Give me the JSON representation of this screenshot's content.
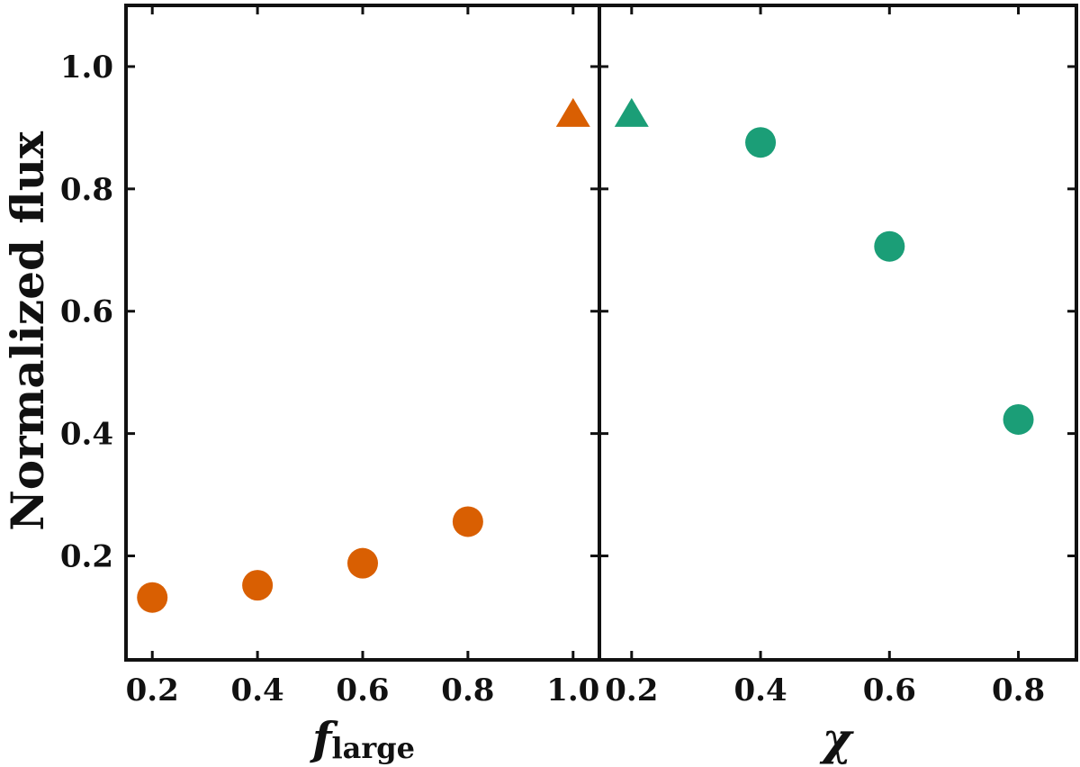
{
  "chart_data": [
    {
      "type": "scatter",
      "panel": "left",
      "ylabel": "Normalized flux",
      "xlabel": "f",
      "xlabel_subscript": "large",
      "xlim": [
        0.15,
        1.05
      ],
      "ylim": [
        0.03,
        1.1
      ],
      "xticks": [
        0.2,
        0.4,
        0.6,
        0.8,
        1.0
      ],
      "xtick_labels": [
        "0.2",
        "0.4",
        "0.6",
        "0.8",
        "1.0"
      ],
      "yticks": [
        0.2,
        0.4,
        0.6,
        0.8,
        1.0
      ],
      "ytick_labels": [
        "0.2",
        "0.4",
        "0.6",
        "0.8",
        "1.0"
      ],
      "series": [
        {
          "color": "#d95f02",
          "marker": "circle",
          "points": [
            {
              "x": 0.2,
              "y": 0.132
            },
            {
              "x": 0.4,
              "y": 0.152
            },
            {
              "x": 0.6,
              "y": 0.188
            },
            {
              "x": 0.8,
              "y": 0.256
            }
          ]
        },
        {
          "color": "#d95f02",
          "marker": "triangle",
          "points": [
            {
              "x": 1.0,
              "y": 0.925
            }
          ]
        }
      ]
    },
    {
      "type": "scatter",
      "panel": "right",
      "xlabel": "χ",
      "xlim": [
        0.15,
        0.89
      ],
      "ylim": [
        0.03,
        1.1
      ],
      "xticks": [
        0.2,
        0.4,
        0.6,
        0.8
      ],
      "xtick_labels": [
        "0.2",
        "0.4",
        "0.6",
        "0.8"
      ],
      "yticks": [
        0.2,
        0.4,
        0.6,
        0.8,
        1.0
      ],
      "series": [
        {
          "color": "#1b9e77",
          "marker": "triangle",
          "points": [
            {
              "x": 0.2,
              "y": 0.925
            }
          ]
        },
        {
          "color": "#1b9e77",
          "marker": "circle",
          "points": [
            {
              "x": 0.4,
              "y": 0.876
            },
            {
              "x": 0.6,
              "y": 0.706
            },
            {
              "x": 0.8,
              "y": 0.423
            }
          ]
        }
      ]
    }
  ]
}
